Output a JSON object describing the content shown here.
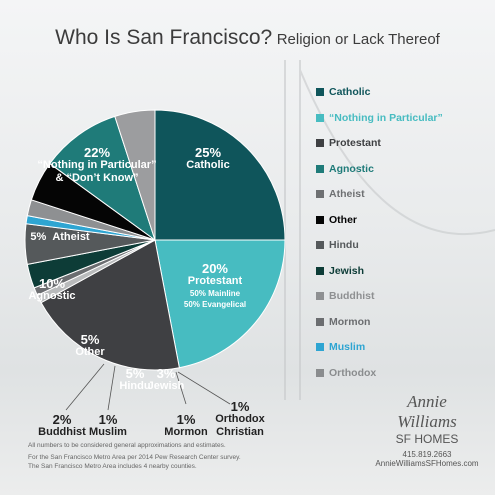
{
  "chart_data": {
    "type": "pie",
    "title": "Who Is San Francisco?",
    "subtitle": "Religion or Lack Thereof",
    "categories": [
      "Catholic",
      "“Nothing in Particular” & “Don’t Know”",
      "Protestant",
      "Orthodox Christian",
      "Mormon",
      "Jewish",
      "Hindu",
      "Muslim",
      "Buddhist",
      "Other",
      "Agnostic",
      "Atheist"
    ],
    "values": [
      25,
      22,
      20,
      1,
      1,
      3,
      5,
      1,
      2,
      5,
      10,
      5
    ],
    "value_labels": [
      "25%",
      "22%",
      "20%",
      "1%",
      "1%",
      "3%",
      "5%",
      "1%",
      "2%",
      "5%",
      "10%",
      "5%"
    ],
    "colors": [
      "#0f555b",
      "#47bcc1",
      "#3f4043",
      "#b9bbbc",
      "#6b6d70",
      "#0d3c37",
      "#55595b",
      "#2ea5d2",
      "#8e9092",
      "#050505",
      "#1f7b79",
      "#9c9d9f"
    ],
    "slice_order": "clockwise",
    "protestant_note": [
      "50% Mainline",
      "50% Evangelical"
    ],
    "legend": [
      {
        "name": "Catholic",
        "color": "#0f555b"
      },
      {
        "name": "“Nothing in Particular”",
        "color": "#47bcc1"
      },
      {
        "name": "Protestant",
        "color": "#3f4043"
      },
      {
        "name": "Agnostic",
        "color": "#1f7b79"
      },
      {
        "name": "Atheist",
        "color": "#6e7072"
      },
      {
        "name": "Other",
        "color": "#050505"
      },
      {
        "name": "Hindu",
        "color": "#55595b"
      },
      {
        "name": "Jewish",
        "color": "#0d3c37"
      },
      {
        "name": "Buddhist",
        "color": "#8e9092"
      },
      {
        "name": "Mormon",
        "color": "#6b6d70"
      },
      {
        "name": "Muslim",
        "color": "#2ea5d2"
      },
      {
        "name": "Orthodox",
        "color": "#8a8c8e"
      }
    ],
    "footnotes": [
      "All numbers to be considered general approximations and estimates.",
      "For the San Francisco Metro Area per 2014 Pew Research Center survey.",
      "The San Francisco Metro Area includes 4 nearby counties."
    ],
    "brand": {
      "line1": "Annie",
      "line2": "Williams",
      "line3": "SF HOMES",
      "phone": "415.819.2663",
      "web": "AnnieWilliamsSFHomes.com"
    }
  }
}
